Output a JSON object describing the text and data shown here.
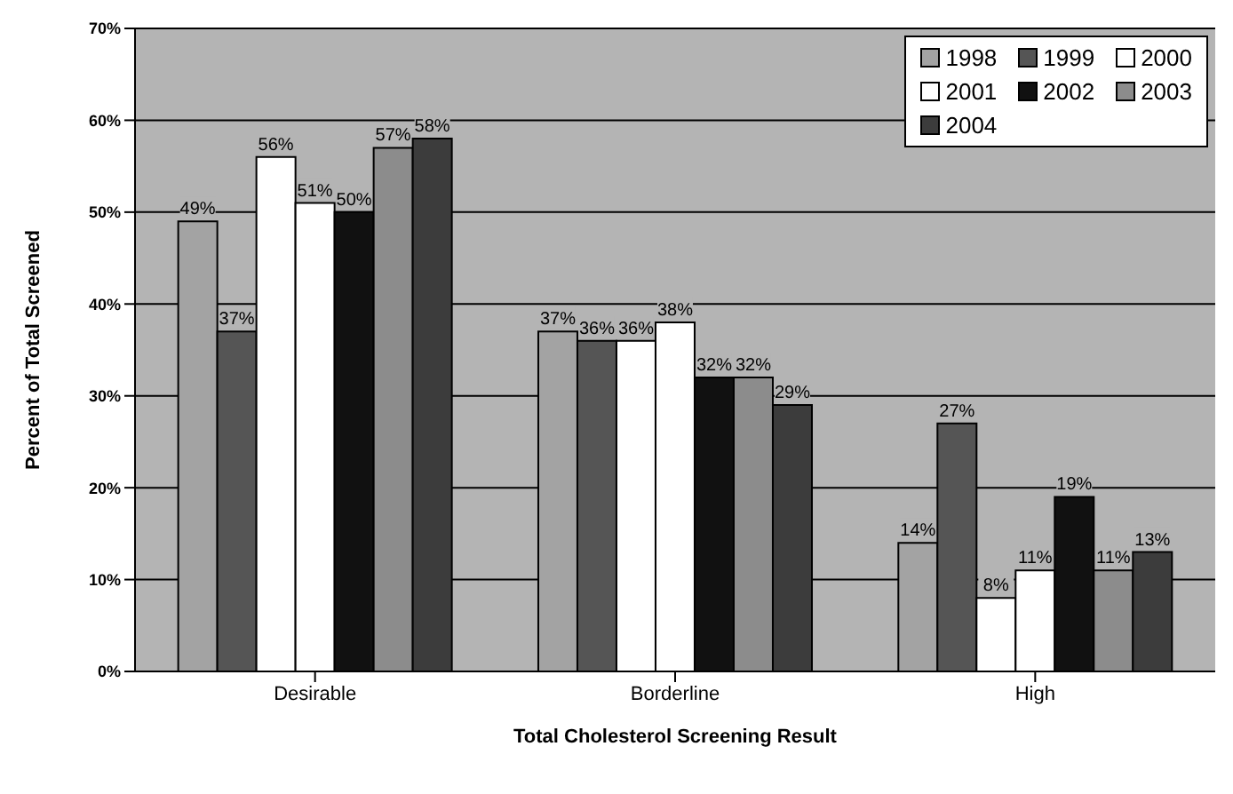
{
  "chart_data": {
    "type": "bar",
    "xlabel": "Total Cholesterol Screening Result",
    "ylabel": "Percent of Total Screened",
    "categories": [
      "Desirable",
      "Borderline",
      "High"
    ],
    "series": [
      {
        "name": "1998",
        "color": "#a3a3a3",
        "values": [
          49,
          37,
          14
        ],
        "value_labels": [
          "49%",
          "37%",
          "14%"
        ]
      },
      {
        "name": "1999",
        "color": "#555555",
        "values": [
          37,
          36,
          27
        ],
        "value_labels": [
          "37%",
          "36%",
          "27%"
        ]
      },
      {
        "name": "2000",
        "color": "#ffffff",
        "values": [
          56,
          36,
          8
        ],
        "value_labels": [
          "56%",
          "36%",
          "8%"
        ]
      },
      {
        "name": "2001",
        "color": "#ffffff",
        "values": [
          51,
          38,
          11
        ],
        "value_labels": [
          "51%",
          "38%",
          "11%"
        ]
      },
      {
        "name": "2002",
        "color": "#111111",
        "values": [
          50,
          32,
          19
        ],
        "value_labels": [
          "50%",
          "32%",
          "19%"
        ]
      },
      {
        "name": "2003",
        "color": "#8c8c8c",
        "values": [
          57,
          32,
          11
        ],
        "value_labels": [
          "57%",
          "32%",
          "11%"
        ]
      },
      {
        "name": "2004",
        "color": "#3c3c3c",
        "values": [
          58,
          29,
          13
        ],
        "value_labels": [
          "58%",
          "29%",
          "13%"
        ]
      }
    ],
    "ylim": [
      0,
      70
    ],
    "yticks": [
      {
        "value": 0,
        "label": "0%"
      },
      {
        "value": 10,
        "label": "10%"
      },
      {
        "value": 20,
        "label": "20%"
      },
      {
        "value": 30,
        "label": "30%"
      },
      {
        "value": 40,
        "label": "40%"
      },
      {
        "value": 50,
        "label": "50%"
      },
      {
        "value": 60,
        "label": "60%"
      },
      {
        "value": 70,
        "label": "70%"
      }
    ],
    "grid": "y",
    "legend": "top right"
  }
}
